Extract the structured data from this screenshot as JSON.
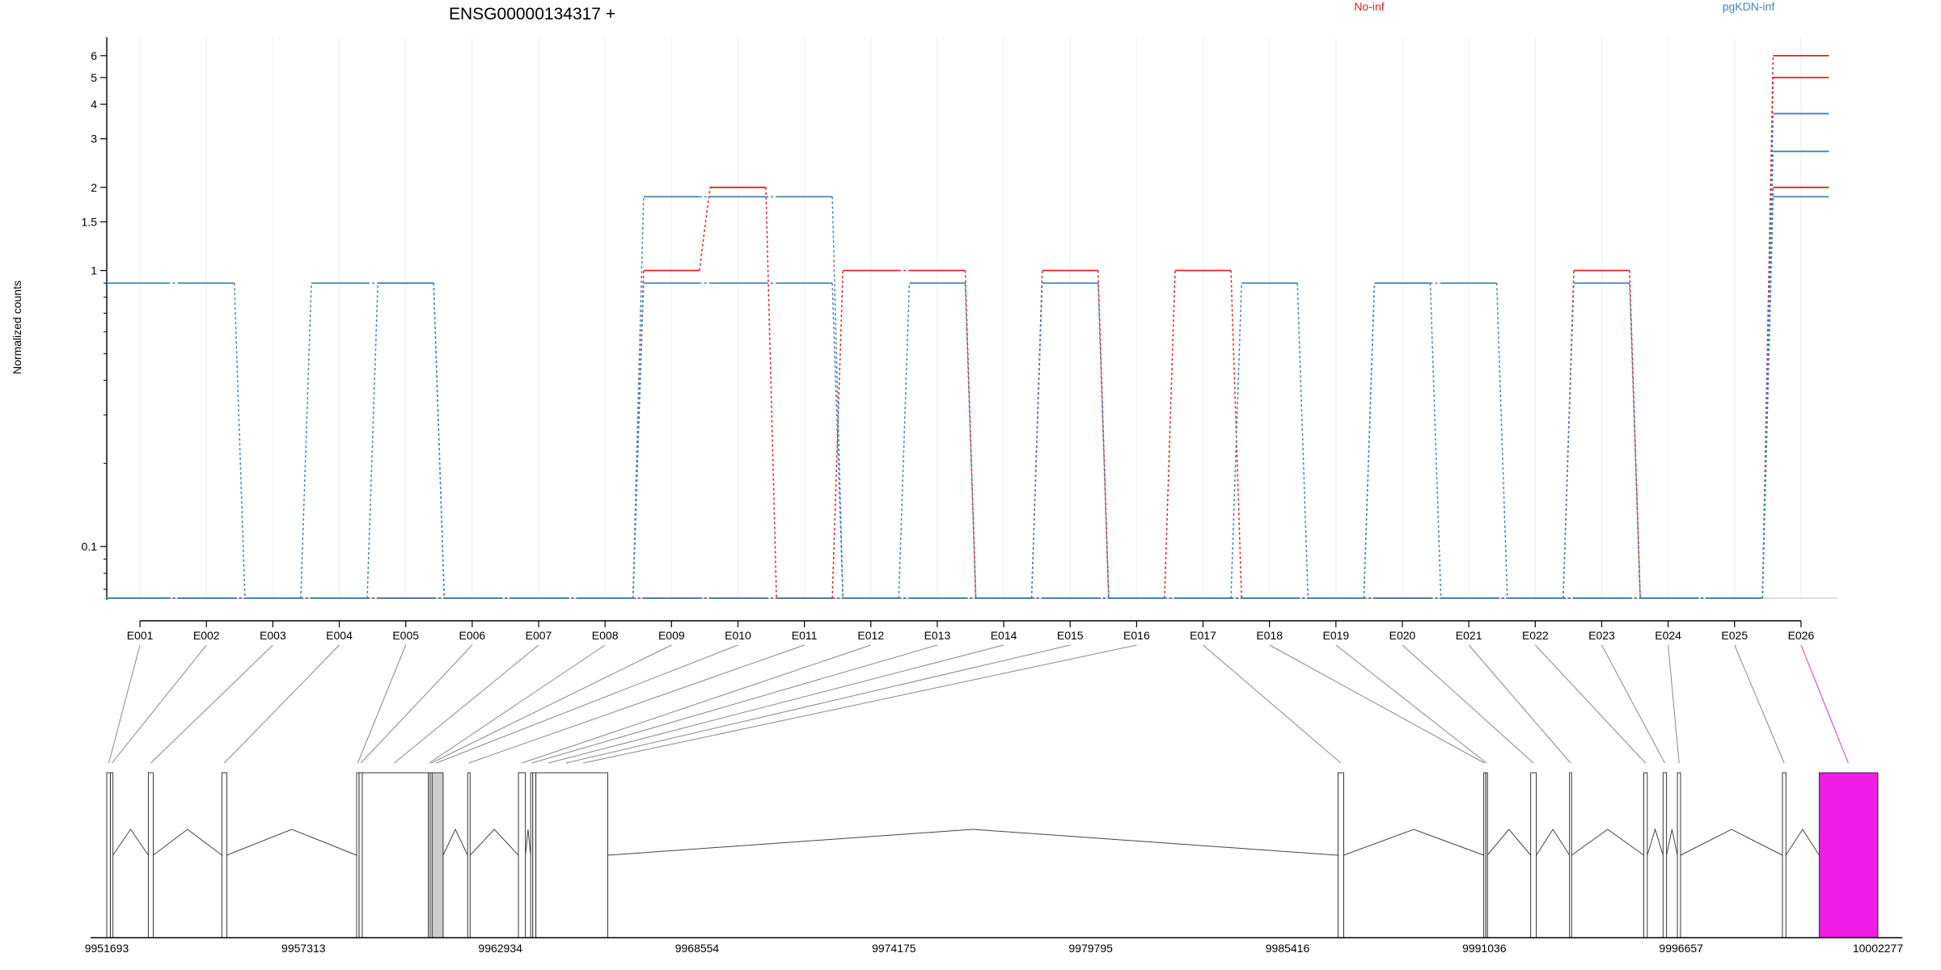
{
  "chart_data": {
    "type": "line",
    "title": "ENSG00000134317 +",
    "ylabel": "Normalized counts",
    "xlabel": "",
    "y_scale": "log",
    "y_ticks": [
      0.1,
      1,
      1.5,
      2,
      3,
      4,
      5,
      6
    ],
    "y_tick_labels": [
      "0.1",
      "1",
      "1.5",
      "2",
      "3",
      "4",
      "5",
      "6"
    ],
    "ylim": [
      0.065,
      7
    ],
    "categories": [
      "E001",
      "E002",
      "E003",
      "E004",
      "E005",
      "E006",
      "E007",
      "E008",
      "E009",
      "E010",
      "E011",
      "E012",
      "E013",
      "E014",
      "E015",
      "E016",
      "E017",
      "E018",
      "E019",
      "E020",
      "E021",
      "E022",
      "E023",
      "E024",
      "E025",
      "E026"
    ],
    "legend": [
      {
        "name": "No-inf",
        "color": "#d62728"
      },
      {
        "name": "pgKDN-inf",
        "color": "#4682b4"
      }
    ],
    "series": [
      {
        "name": "No-inf",
        "color": "#d62728",
        "values": [
          0,
          0,
          0,
          0,
          0,
          0,
          0,
          0,
          1.0,
          2.0,
          0,
          1.0,
          1.0,
          0,
          1.0,
          0,
          1.0,
          0,
          0,
          0,
          0,
          0,
          1.0,
          0,
          0,
          6.0
        ]
      },
      {
        "name": "No-inf",
        "color": "#d62728",
        "values": [
          0,
          0,
          0,
          0,
          0,
          0,
          0,
          0,
          0,
          0,
          0,
          0,
          0,
          0,
          0,
          0,
          0,
          0,
          0,
          0,
          0,
          0,
          0,
          0,
          0,
          5.0
        ]
      },
      {
        "name": "No-inf",
        "color": "#d62728",
        "values": [
          0,
          0,
          0,
          0,
          0,
          0,
          0,
          0,
          0,
          0,
          0,
          0,
          0,
          0,
          0,
          0,
          0,
          0,
          0,
          0,
          0,
          0,
          0,
          0,
          0,
          2.0
        ]
      },
      {
        "name": "pgKDN-inf",
        "color": "#4682b4",
        "values": [
          0.9,
          0.9,
          0,
          0.9,
          0.9,
          0,
          0,
          0,
          1.85,
          1.85,
          1.85,
          0,
          0.9,
          0,
          0.9,
          0,
          0,
          0.9,
          0,
          0.9,
          0.9,
          0,
          0.9,
          0,
          0,
          3.7
        ]
      },
      {
        "name": "pgKDN-inf",
        "color": "#4682b4",
        "values": [
          0,
          0,
          0,
          0,
          0.9,
          0,
          0,
          0,
          0.9,
          0.9,
          0.9,
          0,
          0,
          0,
          0,
          0,
          0,
          0,
          0,
          0.9,
          0,
          0,
          0,
          0,
          0,
          2.7
        ]
      },
      {
        "name": "pgKDN-inf",
        "color": "#4682b4",
        "values": [
          0,
          0,
          0,
          0,
          0,
          0,
          0,
          0,
          0,
          0,
          0,
          0,
          0,
          0,
          0,
          0,
          0,
          0,
          0,
          0,
          0,
          0,
          0,
          0,
          0,
          1.85
        ]
      }
    ],
    "gene_model": {
      "coordinate_ticks": [
        9951693,
        9957313,
        9962934,
        9968554,
        9974175,
        9979795,
        9985416,
        9991036,
        9996657,
        10002277
      ],
      "coordinate_tick_labels": [
        "9951693",
        "9957313",
        "9962934",
        "9968554",
        "9974175",
        "9979795",
        "9985416",
        "9991036",
        "9996657",
        "10002277"
      ],
      "range": [
        9951693,
        10002277
      ],
      "exons": [
        {
          "start": 9951693,
          "end": 9951800
        },
        {
          "start": 9951800,
          "end": 9951870
        },
        {
          "start": 9952880,
          "end": 9953020
        },
        {
          "start": 9954980,
          "end": 9955120
        },
        {
          "start": 9958830,
          "end": 9958900
        },
        {
          "start": 9958900,
          "end": 9958990
        },
        {
          "start": 9958990,
          "end": 9960880
        },
        {
          "start": 9960880,
          "end": 9960930
        },
        {
          "start": 9960930,
          "end": 9960985
        },
        {
          "start": 9960985,
          "end": 9961300,
          "shaded": true
        },
        {
          "start": 9962000,
          "end": 9962070
        },
        {
          "start": 9963450,
          "end": 9963650
        },
        {
          "start": 9963800,
          "end": 9963860
        },
        {
          "start": 9963860,
          "end": 9963950
        },
        {
          "start": 9963950,
          "end": 9966000
        },
        {
          "start": 9986860,
          "end": 9987020
        },
        {
          "start": 9991020,
          "end": 9991080
        },
        {
          "start": 9991080,
          "end": 9991120
        },
        {
          "start": 9992360,
          "end": 9992520
        },
        {
          "start": 9993470,
          "end": 9993530
        },
        {
          "start": 9995590,
          "end": 9995690
        },
        {
          "start": 9996140,
          "end": 9996240
        },
        {
          "start": 9996550,
          "end": 9996640
        },
        {
          "start": 9999550,
          "end": 9999650
        },
        {
          "start": 10000600,
          "end": 10002277,
          "highlight": true
        }
      ],
      "highlight_color": "#f01de8",
      "shaded_color": "#cccccc",
      "exon_links": [
        {
          "exon": "E001",
          "pos": 9951750
        },
        {
          "exon": "E002",
          "pos": 9951840
        },
        {
          "exon": "E003",
          "pos": 9952950
        },
        {
          "exon": "E004",
          "pos": 9955050
        },
        {
          "exon": "E005",
          "pos": 9958860
        },
        {
          "exon": "E006",
          "pos": 9958950
        },
        {
          "exon": "E007",
          "pos": 9959900
        },
        {
          "exon": "E008",
          "pos": 9960900
        },
        {
          "exon": "E009",
          "pos": 9960960
        },
        {
          "exon": "E010",
          "pos": 9961100
        },
        {
          "exon": "E011",
          "pos": 9962030
        },
        {
          "exon": "E012",
          "pos": 9963550
        },
        {
          "exon": "E013",
          "pos": 9963830
        },
        {
          "exon": "E014",
          "pos": 9964300
        },
        {
          "exon": "E015",
          "pos": 9964800
        },
        {
          "exon": "E016",
          "pos": 9965300
        },
        {
          "exon": "E017",
          "pos": 9986940
        },
        {
          "exon": "E018",
          "pos": 9991040
        },
        {
          "exon": "E019",
          "pos": 9991100
        },
        {
          "exon": "E020",
          "pos": 9992440
        },
        {
          "exon": "E021",
          "pos": 9993500
        },
        {
          "exon": "E022",
          "pos": 9995640
        },
        {
          "exon": "E023",
          "pos": 9996190
        },
        {
          "exon": "E024",
          "pos": 9996600
        },
        {
          "exon": "E025",
          "pos": 9999600
        },
        {
          "exon": "E026",
          "pos": 10001430
        }
      ]
    }
  }
}
